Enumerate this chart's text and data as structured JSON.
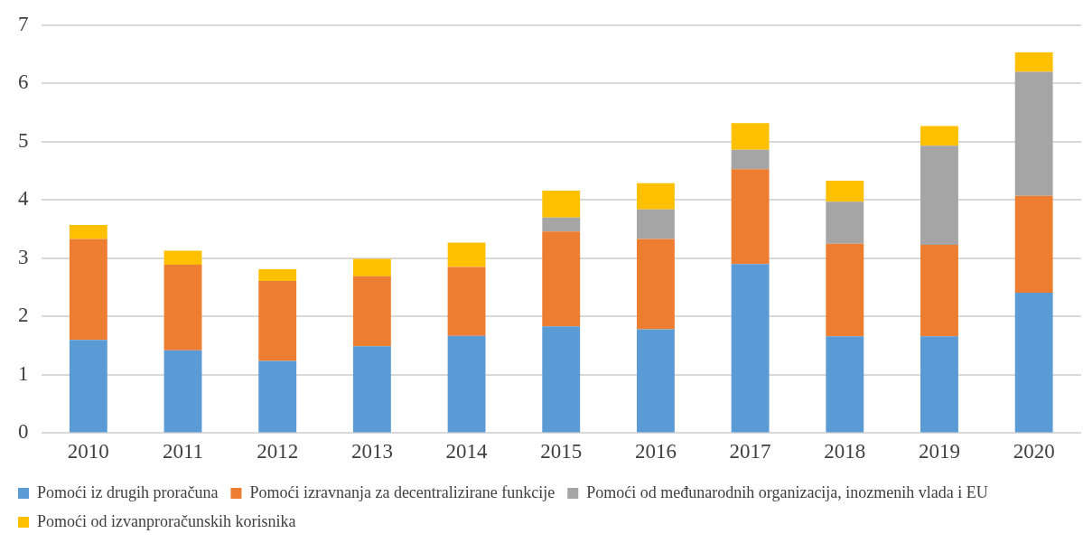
{
  "chart_data": {
    "type": "bar",
    "stacked": true,
    "categories": [
      "2010",
      "2011",
      "2012",
      "2013",
      "2014",
      "2015",
      "2016",
      "2017",
      "2018",
      "2019",
      "2020"
    ],
    "series": [
      {
        "name": "Pomoći iz drugih proračuna",
        "color": "#5b9bd5",
        "values": [
          1.6,
          1.42,
          1.24,
          1.49,
          1.67,
          1.83,
          1.78,
          2.9,
          1.66,
          1.66,
          2.41
        ]
      },
      {
        "name": "Pomoći izravnanja za decentralizirane funkcije",
        "color": "#ed7d31",
        "values": [
          1.73,
          1.47,
          1.37,
          1.2,
          1.18,
          1.63,
          1.55,
          1.63,
          1.59,
          1.57,
          1.66
        ]
      },
      {
        "name": "Pomoći od međunarodnih organizacija, inozmenih vlada i EU",
        "color": "#a5a5a5",
        "values": [
          null,
          null,
          null,
          null,
          null,
          0.24,
          0.51,
          0.33,
          0.72,
          1.7,
          2.13
        ]
      },
      {
        "name": "Pomoći od izvanproračunskih korisnika",
        "color": "#ffc000",
        "values": [
          0.24,
          0.24,
          0.2,
          0.3,
          0.42,
          0.46,
          0.45,
          0.46,
          0.36,
          0.34,
          0.33
        ]
      }
    ],
    "ylim": [
      0,
      7
    ],
    "yticks": [
      0,
      1,
      2,
      3,
      4,
      5,
      6,
      7
    ],
    "grid": "y",
    "legend": "bottom"
  }
}
